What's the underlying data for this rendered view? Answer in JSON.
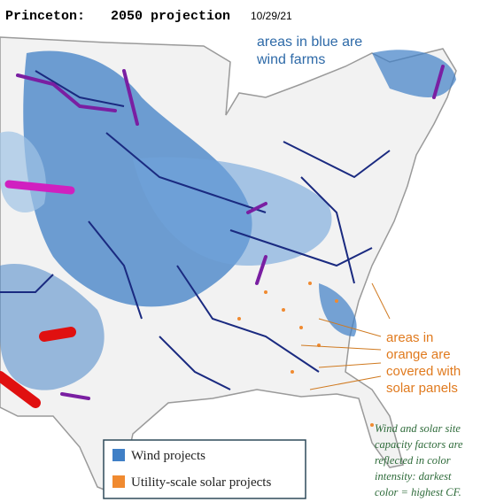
{
  "header": {
    "title": "Princeton:",
    "subtitle": "2050 projection",
    "date": "10/29/21"
  },
  "annotations": {
    "wind": [
      "areas in blue are",
      "wind farms"
    ],
    "solar": [
      "areas in",
      "orange are",
      "covered with",
      "solar panels"
    ],
    "note": [
      "Wind and solar site",
      "capacity factors are",
      "reflected in color",
      "intensity: darkest",
      "color = highest CF."
    ]
  },
  "legend": {
    "items": [
      "Wind projects",
      "Utility-scale solar projects"
    ]
  }
}
